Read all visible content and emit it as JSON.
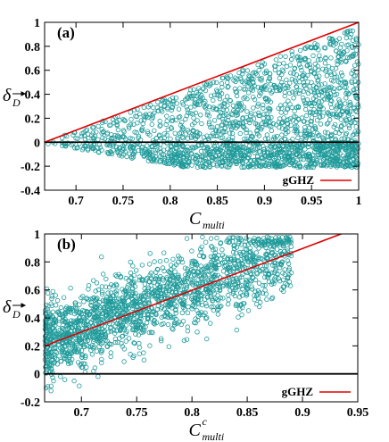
{
  "chart_data": [
    {
      "type": "scatter",
      "panel_label": "(a)",
      "xlabel": "C",
      "xlabel_sub": "multi",
      "ylabel": "δ",
      "ylabel_sub": "D",
      "xlim": [
        0.6667,
        1.0
      ],
      "ylim": [
        -0.4,
        1.0
      ],
      "xticks": [
        0.7,
        0.75,
        0.8,
        0.85,
        0.9,
        0.95,
        1
      ],
      "xtick_labels": [
        "0.7",
        "0.75",
        "0.8",
        "0.85",
        "0.9",
        "0.95",
        "1"
      ],
      "yticks": [
        -0.4,
        -0.2,
        0,
        0.2,
        0.4,
        0.6,
        0.8,
        1
      ],
      "ytick_labels": [
        "-0.4",
        "-0.2",
        "0",
        "0.2",
        "0.4",
        "0.6",
        "0.8",
        "1"
      ],
      "zero_line": true,
      "legend": {
        "position": "bottom-right",
        "entries": [
          "gGHZ"
        ]
      },
      "series": [
        {
          "name": "gGHZ",
          "kind": "line",
          "color": "#e00000",
          "x": [
            0.6667,
            1.0
          ],
          "y": [
            0.0,
            1.0
          ]
        }
      ],
      "scatter_description": {
        "color": "#1f9a9a",
        "marker": "open-circle",
        "approx_count": 2000,
        "x_range": [
          0.667,
          1.0
        ],
        "y_lower_bound": "about -0.2",
        "y_upper_bound": "gGHZ line"
      }
    },
    {
      "type": "scatter",
      "panel_label": "(b)",
      "xlabel": "C",
      "xlabel_sup": "c",
      "xlabel_sub": "multi",
      "ylabel": "δ",
      "ylabel_sub": "D",
      "xlim": [
        0.6667,
        0.95
      ],
      "ylim": [
        -0.2,
        1.0
      ],
      "xticks": [
        0.7,
        0.75,
        0.8,
        0.85,
        0.9,
        0.95
      ],
      "xtick_labels": [
        "0.7",
        "0.75",
        "0.8",
        "0.85",
        "0.9",
        "0.95"
      ],
      "yticks": [
        -0.2,
        0,
        0.2,
        0.4,
        0.6,
        0.8,
        1
      ],
      "ytick_labels": [
        "-0.2",
        "0",
        "0.2",
        "0.4",
        "0.6",
        "0.8",
        "1"
      ],
      "zero_line": true,
      "legend": {
        "position": "bottom-right",
        "entries": [
          "gGHZ"
        ]
      },
      "series": [
        {
          "name": "gGHZ",
          "kind": "line",
          "color": "#e00000",
          "x": [
            0.6667,
            0.935
          ],
          "y": [
            0.2,
            1.0
          ]
        }
      ],
      "scatter_description": {
        "color": "#1f9a9a",
        "marker": "open-circle",
        "approx_count": 1800,
        "x_range": [
          0.667,
          0.89
        ],
        "band_center": "slightly above gGHZ line",
        "band_halfwidth": 0.28
      }
    }
  ]
}
